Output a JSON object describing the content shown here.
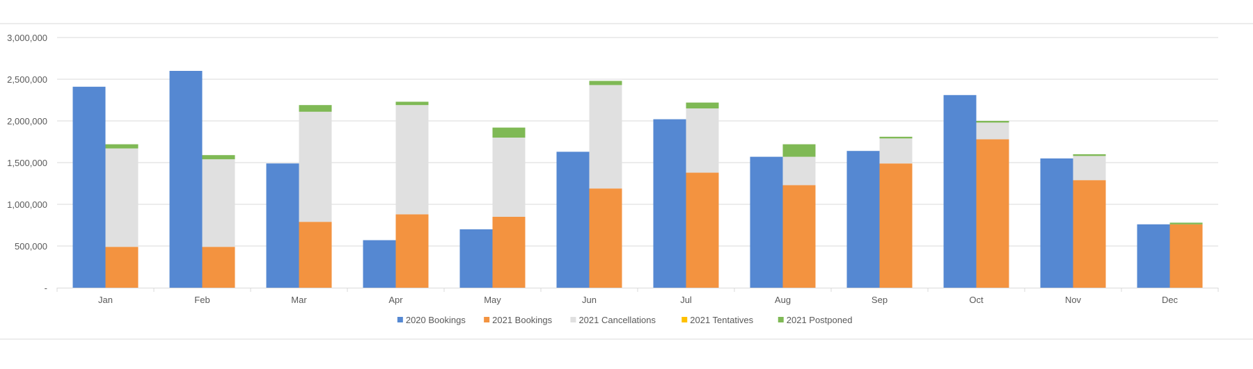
{
  "chart_data": {
    "type": "bar",
    "title": "",
    "xlabel": "",
    "ylabel": "",
    "ylim": [
      0,
      3000000
    ],
    "y_ticks": [
      0,
      500000,
      1000000,
      1500000,
      2000000,
      2500000,
      3000000
    ],
    "y_tick_labels": [
      "-",
      "500,000",
      "1,000,000",
      "1,500,000",
      "2,000,000",
      "2,500,000",
      "3,000,000"
    ],
    "grid": true,
    "legend_position": "bottom",
    "categories": [
      "Jan",
      "Feb",
      "Mar",
      "Apr",
      "May",
      "Jun",
      "Jul",
      "Aug",
      "Sep",
      "Oct",
      "Nov",
      "Dec"
    ],
    "groups": [
      {
        "series": [
          {
            "name": "2020 Bookings",
            "color": "#5588D2",
            "values": [
              2410000,
              2600000,
              1490000,
              570000,
              700000,
              1630000,
              2020000,
              1570000,
              1640000,
              2310000,
              1550000,
              760000
            ]
          }
        ]
      },
      {
        "stacked": true,
        "series": [
          {
            "name": "2021 Bookings",
            "color": "#F39340",
            "values": [
              490000,
              490000,
              790000,
              880000,
              850000,
              1190000,
              1380000,
              1230000,
              1490000,
              1780000,
              1290000,
              760000
            ]
          },
          {
            "name": "2021 Cancellations",
            "color": "#E0E0E0",
            "values": [
              1180000,
              1050000,
              1320000,
              1310000,
              950000,
              1240000,
              770000,
              340000,
              300000,
              200000,
              290000,
              0
            ]
          },
          {
            "name": "2021 Tentatives",
            "color": "#FFC000",
            "values": [
              0,
              0,
              0,
              0,
              0,
              0,
              0,
              0,
              0,
              0,
              0,
              0
            ]
          },
          {
            "name": "2021 Postponed",
            "color": "#7FB955",
            "values": [
              50000,
              50000,
              80000,
              40000,
              120000,
              50000,
              70000,
              150000,
              20000,
              20000,
              20000,
              20000
            ]
          }
        ]
      }
    ]
  }
}
